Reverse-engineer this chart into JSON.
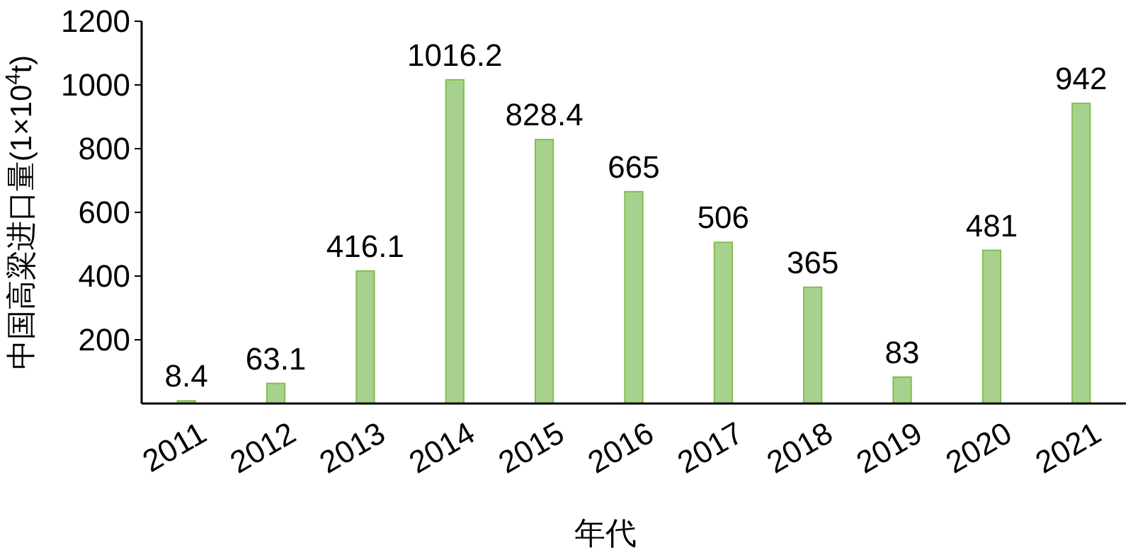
{
  "chart_data": {
    "type": "bar",
    "xlabel": "年代",
    "ylabel": "中国高粱进口量(1×10$^{4}$t)",
    "categories": [
      "2011",
      "2012",
      "2013",
      "2014",
      "2015",
      "2016",
      "2017",
      "2018",
      "2019",
      "2020",
      "2021"
    ],
    "values": [
      8.4,
      63.1,
      416.1,
      1016.2,
      828.4,
      665,
      506,
      365,
      83,
      481,
      942
    ],
    "color": "#a9d18e",
    "ylim": [
      0,
      1200
    ],
    "yticks": [
      200,
      400,
      600,
      800,
      1000,
      1200
    ],
    "data_labels": true
  }
}
